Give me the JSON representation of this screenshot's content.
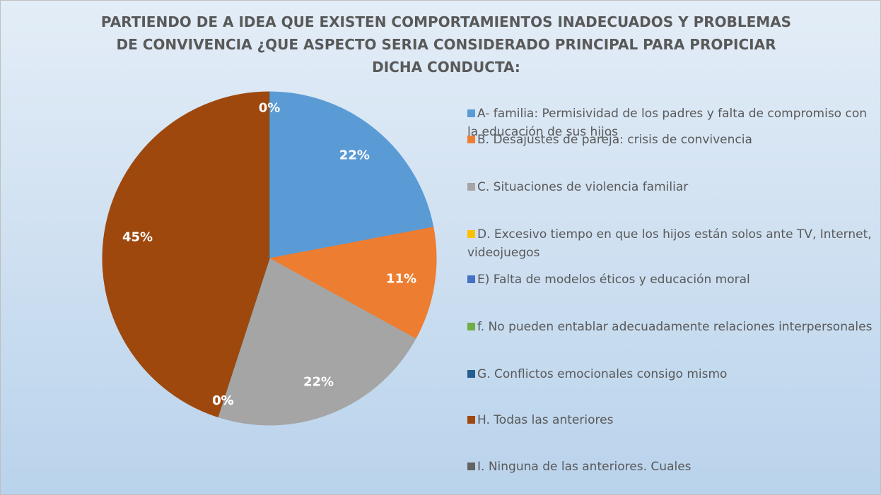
{
  "chart_data": {
    "type": "pie",
    "title": "PARTIENDO DE A IDEA QUE EXISTEN  COMPORTAMIENTOS INADECUADOS Y PROBLEMAS DE CONVIVENCIA ¿QUE ASPECTO SERIA CONSIDERADO PRINCIPAL PARA PROPICIAR DICHA CONDUCTA:",
    "categories": [
      "A-  familia: Permisividad de los padres y falta de compromiso con la educación de sus hijos",
      "B. Desajustes de pareja: crisis de convivencia",
      "C. Situaciones de violencia familiar",
      "D. Excesivo tiempo en que los hijos están solos ante TV, Internet, videojuegos",
      "E) Falta de modelos éticos y educación moral",
      "f.  No pueden entablar adecuadamente relaciones interpersonales",
      "G. Conflictos emocionales consigo mismo",
      "H. Todas las anteriores",
      "I. Ninguna de las anteriores. Cuales"
    ],
    "values": [
      22,
      11,
      22,
      0,
      0,
      0,
      0,
      45,
      0
    ],
    "value_labels": [
      "22%",
      "11%",
      "22%",
      "0%",
      "0%",
      "0%",
      "0%",
      "45%",
      "0%"
    ],
    "colors": [
      "#5b9bd5",
      "#ed7d31",
      "#a5a5a5",
      "#ffc000",
      "#4472c4",
      "#70ad47",
      "#255e91",
      "#9e480e",
      "#636363"
    ],
    "legend": "right"
  }
}
